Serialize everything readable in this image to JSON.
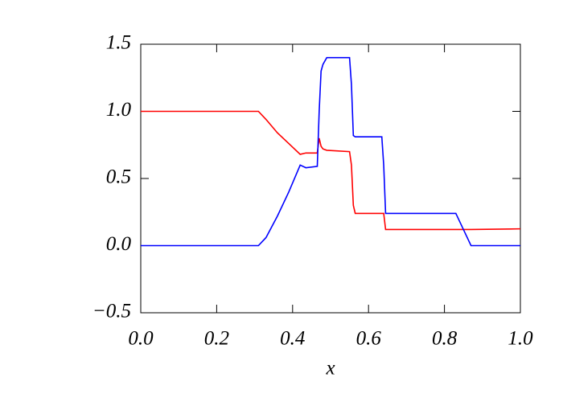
{
  "chart_data": {
    "type": "line",
    "x_label": "x",
    "x": [
      0,
      0.31,
      0.33,
      0.36,
      0.39,
      0.42,
      0.435,
      0.465,
      0.47,
      0.475,
      0.48,
      0.49,
      0.55,
      0.555,
      0.56,
      0.565,
      0.635,
      0.64,
      0.645,
      0.83,
      0.85,
      0.87,
      1.0
    ],
    "series": [
      {
        "color": "#ff0000",
        "values": [
          1.0,
          1.0,
          0.94,
          0.84,
          0.76,
          0.68,
          0.69,
          0.69,
          0.8,
          0.74,
          0.72,
          0.71,
          0.7,
          0.6,
          0.3,
          0.24,
          0.24,
          0.24,
          0.12,
          0.12,
          0.12,
          0.12,
          0.125
        ]
      },
      {
        "color": "#0000ff",
        "values": [
          0,
          0,
          0.06,
          0.22,
          0.4,
          0.6,
          0.58,
          0.59,
          1.0,
          1.3,
          1.35,
          1.4,
          1.4,
          1.2,
          0.82,
          0.81,
          0.81,
          0.6,
          0.24,
          0.24,
          0.12,
          0,
          0
        ]
      }
    ],
    "xlim": [
      0,
      1
    ],
    "ylim": [
      -0.5,
      1.5
    ],
    "xticks": [
      {
        "value": 0,
        "label": "0.0"
      },
      {
        "value": 0.2,
        "label": "0.2"
      },
      {
        "value": 0.4,
        "label": "0.4"
      },
      {
        "value": 0.6,
        "label": "0.6"
      },
      {
        "value": 0.8,
        "label": "0.8"
      },
      {
        "value": 1,
        "label": "1.0"
      }
    ],
    "yticks": [
      {
        "value": -0.5,
        "label": "−0.5"
      },
      {
        "value": 0,
        "label": "0.0"
      },
      {
        "value": 0.5,
        "label": "0.5"
      },
      {
        "value": 1,
        "label": "1.0"
      },
      {
        "value": 1.5,
        "label": "1.5"
      }
    ],
    "grid": false
  }
}
